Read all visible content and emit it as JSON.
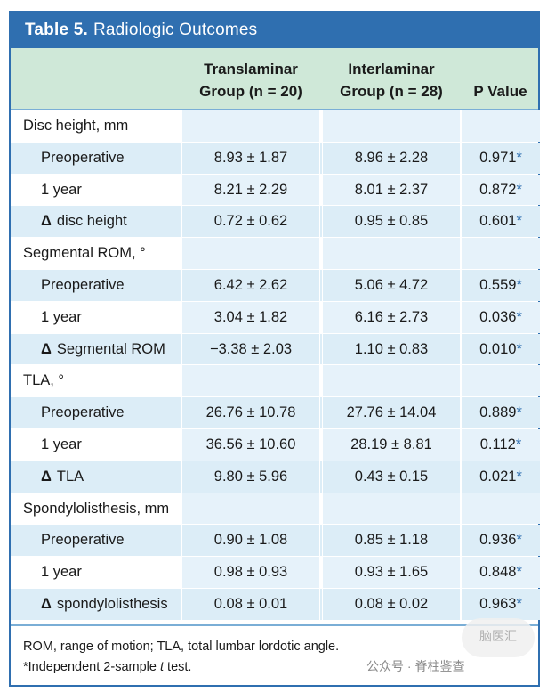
{
  "table": {
    "number": "Table 5.",
    "title": "Radiologic Outcomes",
    "col_trans_line1": "Translaminar",
    "col_trans_line2": "Group (n = 20)",
    "col_inter_line1": "Interlaminar",
    "col_inter_line2": "Group (n = 28)",
    "col_p": "P Value",
    "rows": [
      {
        "label": "Disc height, mm",
        "type": "section",
        "trans": "",
        "inter": "",
        "p": "",
        "star": ""
      },
      {
        "label": "Preoperative",
        "type": "sub",
        "trans": "8.93 ± 1.87",
        "inter": "8.96 ± 2.28",
        "p": "0.971",
        "star": "*"
      },
      {
        "label": "1 year",
        "type": "sub",
        "trans": "8.21 ± 2.29",
        "inter": "8.01 ± 2.37",
        "p": "0.872",
        "star": "*"
      },
      {
        "label": "disc height",
        "type": "delta",
        "trans": "0.72 ± 0.62",
        "inter": "0.95 ± 0.85",
        "p": "0.601",
        "star": "*"
      },
      {
        "label": "Segmental ROM, °",
        "type": "section",
        "trans": "",
        "inter": "",
        "p": "",
        "star": ""
      },
      {
        "label": "Preoperative",
        "type": "sub",
        "trans": "6.42 ± 2.62",
        "inter": "5.06 ± 4.72",
        "p": "0.559",
        "star": "*"
      },
      {
        "label": "1 year",
        "type": "sub",
        "trans": "3.04 ± 1.82",
        "inter": "6.16 ± 2.73",
        "p": "0.036",
        "star": "*"
      },
      {
        "label": "Segmental ROM",
        "type": "delta",
        "trans": "−3.38 ± 2.03",
        "inter": "1.10 ± 0.83",
        "p": "0.010",
        "star": "*"
      },
      {
        "label": "TLA, °",
        "type": "section",
        "trans": "",
        "inter": "",
        "p": "",
        "star": ""
      },
      {
        "label": "Preoperative",
        "type": "sub",
        "trans": "26.76 ± 10.78",
        "inter": "27.76 ± 14.04",
        "p": "0.889",
        "star": "*"
      },
      {
        "label": "1 year",
        "type": "sub",
        "trans": "36.56 ± 10.60",
        "inter": "28.19 ± 8.81",
        "p": "0.112",
        "star": "*"
      },
      {
        "label": "TLA",
        "type": "delta",
        "trans": "9.80 ± 5.96",
        "inter": "0.43 ± 0.15",
        "p": "0.021",
        "star": "*"
      },
      {
        "label": "Spondylolisthesis, mm",
        "type": "section",
        "trans": "",
        "inter": "",
        "p": "",
        "star": ""
      },
      {
        "label": "Preoperative",
        "type": "sub",
        "trans": "0.90 ± 1.08",
        "inter": "0.85 ± 1.18",
        "p": "0.936",
        "star": "*"
      },
      {
        "label": "1 year",
        "type": "sub",
        "trans": "0.98 ± 0.93",
        "inter": "0.93 ± 1.65",
        "p": "0.848",
        "star": "*"
      },
      {
        "label": "spondylolisthesis",
        "type": "delta",
        "trans": "0.08 ± 0.01",
        "inter": "0.08 ± 0.02",
        "p": "0.963",
        "star": "*"
      }
    ],
    "delta_symbol": "Δ",
    "footnote_1": "ROM, range of motion; TLA, total lumbar lordotic angle.",
    "footnote_2_prefix": "*Independent 2-sample ",
    "footnote_2_italic": "t",
    "footnote_2_suffix": " test."
  },
  "watermark": {
    "text": "公众号 · 脊柱鉴查",
    "logo_text": "脑医汇"
  },
  "colors": {
    "title_bar": "#2f6fb0",
    "header_bg": "#cfe8d8",
    "row_alt": "#dcedf7",
    "star": "#2f6fb0"
  }
}
